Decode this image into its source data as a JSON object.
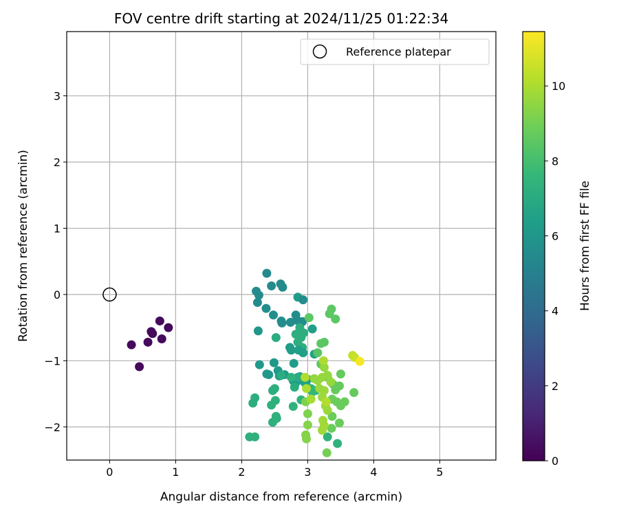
{
  "chart_data": {
    "type": "scatter",
    "title": "FOV centre drift starting at 2024/11/25 01:22:34",
    "xlabel": "Angular distance from reference (arcmin)",
    "ylabel": "Rotation from reference (arcmin)",
    "xlim": [
      -0.65,
      5.85
    ],
    "ylim": [
      -2.5,
      3.97
    ],
    "xticks": [
      "0",
      "1",
      "2",
      "3",
      "4",
      "5"
    ],
    "yticks": [
      "−2",
      "−1",
      "0",
      "1",
      "2",
      "3"
    ],
    "grid": true,
    "legend": {
      "position": "top-right",
      "entries": [
        "Reference platepar"
      ]
    },
    "reference_point": {
      "x": 0,
      "y": 0
    },
    "colorbar": {
      "label": "Hours from first FF file",
      "range": [
        0,
        11.45
      ],
      "ticks": [
        "0",
        "2",
        "4",
        "6",
        "8",
        "10"
      ],
      "colormap": "viridis",
      "colors": [
        "#440154",
        "#482878",
        "#3e4989",
        "#31688e",
        "#26828e",
        "#1f9e89",
        "#35b779",
        "#6ece58",
        "#b5de2b",
        "#fde725"
      ]
    },
    "points": [
      {
        "x": 0.33,
        "y": -0.76,
        "c": 0.3
      },
      {
        "x": 0.45,
        "y": -1.09,
        "c": 0.3
      },
      {
        "x": 0.58,
        "y": -0.72,
        "c": 0.3
      },
      {
        "x": 0.63,
        "y": -0.56,
        "c": 0.3
      },
      {
        "x": 0.65,
        "y": -0.59,
        "c": 0.3
      },
      {
        "x": 0.76,
        "y": -0.4,
        "c": 0.3
      },
      {
        "x": 0.79,
        "y": -0.67,
        "c": 0.3
      },
      {
        "x": 0.89,
        "y": -0.5,
        "c": 0.3
      },
      {
        "x": 2.38,
        "y": 0.32,
        "c": 5.4
      },
      {
        "x": 2.22,
        "y": 0.05,
        "c": 5.5
      },
      {
        "x": 2.26,
        "y": -0.01,
        "c": 5.5
      },
      {
        "x": 2.24,
        "y": -0.12,
        "c": 5.5
      },
      {
        "x": 2.45,
        "y": 0.13,
        "c": 5.5
      },
      {
        "x": 2.59,
        "y": 0.16,
        "c": 5.5
      },
      {
        "x": 2.62,
        "y": 0.11,
        "c": 5.5
      },
      {
        "x": 2.37,
        "y": -0.21,
        "c": 5.6
      },
      {
        "x": 2.48,
        "y": -0.31,
        "c": 5.6
      },
      {
        "x": 2.6,
        "y": -0.4,
        "c": 5.6
      },
      {
        "x": 2.61,
        "y": -0.43,
        "c": 5.6
      },
      {
        "x": 2.74,
        "y": -0.42,
        "c": 5.6
      },
      {
        "x": 2.82,
        "y": -0.31,
        "c": 5.6
      },
      {
        "x": 2.84,
        "y": -0.39,
        "c": 5.6
      },
      {
        "x": 2.92,
        "y": -0.41,
        "c": 5.6
      },
      {
        "x": 2.85,
        "y": -0.04,
        "c": 6.3
      },
      {
        "x": 2.93,
        "y": -0.08,
        "c": 5.6
      },
      {
        "x": 2.25,
        "y": -0.55,
        "c": 6.0
      },
      {
        "x": 2.27,
        "y": -1.06,
        "c": 6.1
      },
      {
        "x": 2.38,
        "y": -1.2,
        "c": 6.1
      },
      {
        "x": 2.41,
        "y": -1.21,
        "c": 6.1
      },
      {
        "x": 2.49,
        "y": -1.03,
        "c": 6.1
      },
      {
        "x": 2.55,
        "y": -1.15,
        "c": 6.2
      },
      {
        "x": 2.57,
        "y": -1.23,
        "c": 6.2
      },
      {
        "x": 2.65,
        "y": -1.21,
        "c": 6.2
      },
      {
        "x": 2.73,
        "y": -0.8,
        "c": 6.2
      },
      {
        "x": 2.75,
        "y": -0.84,
        "c": 6.3
      },
      {
        "x": 2.79,
        "y": -1.04,
        "c": 6.3
      },
      {
        "x": 2.78,
        "y": -1.3,
        "c": 6.3
      },
      {
        "x": 2.81,
        "y": -1.35,
        "c": 6.3
      },
      {
        "x": 2.82,
        "y": -0.6,
        "c": 7.2
      },
      {
        "x": 2.85,
        "y": -0.72,
        "c": 7.2
      },
      {
        "x": 2.88,
        "y": -0.5,
        "c": 7.2
      },
      {
        "x": 2.9,
        "y": -0.65,
        "c": 7.2
      },
      {
        "x": 2.92,
        "y": -0.8,
        "c": 7.2
      },
      {
        "x": 2.94,
        "y": -0.58,
        "c": 7.2
      },
      {
        "x": 2.86,
        "y": -0.84,
        "c": 6.4
      },
      {
        "x": 2.93,
        "y": -0.88,
        "c": 6.4
      },
      {
        "x": 3.07,
        "y": -0.52,
        "c": 6.4
      },
      {
        "x": 3.1,
        "y": -0.9,
        "c": 6.5
      },
      {
        "x": 2.88,
        "y": -1.24,
        "c": 6.5
      },
      {
        "x": 2.92,
        "y": -1.3,
        "c": 6.5
      },
      {
        "x": 2.97,
        "y": -1.35,
        "c": 6.5
      },
      {
        "x": 3.0,
        "y": -1.28,
        "c": 6.6
      },
      {
        "x": 2.52,
        "y": -0.65,
        "c": 7.0
      },
      {
        "x": 2.85,
        "y": -1.25,
        "c": 7.0
      },
      {
        "x": 2.8,
        "y": -1.4,
        "c": 7.1
      },
      {
        "x": 2.6,
        "y": -1.22,
        "c": 7.1
      },
      {
        "x": 2.47,
        "y": -1.45,
        "c": 7.2
      },
      {
        "x": 2.5,
        "y": -1.42,
        "c": 7.2
      },
      {
        "x": 2.2,
        "y": -1.56,
        "c": 7.2
      },
      {
        "x": 2.17,
        "y": -1.64,
        "c": 7.2
      },
      {
        "x": 2.45,
        "y": -1.67,
        "c": 7.3
      },
      {
        "x": 2.51,
        "y": -1.6,
        "c": 7.3
      },
      {
        "x": 2.47,
        "y": -1.93,
        "c": 7.3
      },
      {
        "x": 2.53,
        "y": -1.87,
        "c": 7.3
      },
      {
        "x": 2.52,
        "y": -1.84,
        "c": 7.3
      },
      {
        "x": 2.12,
        "y": -2.15,
        "c": 7.3
      },
      {
        "x": 2.2,
        "y": -2.15,
        "c": 7.3
      },
      {
        "x": 2.78,
        "y": -1.69,
        "c": 7.4
      },
      {
        "x": 2.9,
        "y": -1.59,
        "c": 7.4
      },
      {
        "x": 2.75,
        "y": -1.25,
        "c": 7.4
      },
      {
        "x": 3.05,
        "y": -1.42,
        "c": 7.6
      },
      {
        "x": 3.07,
        "y": -1.47,
        "c": 7.6
      },
      {
        "x": 3.12,
        "y": -1.45,
        "c": 7.6
      },
      {
        "x": 3.3,
        "y": -2.15,
        "c": 7.4
      },
      {
        "x": 3.45,
        "y": -2.25,
        "c": 7.4
      },
      {
        "x": 3.15,
        "y": -0.88,
        "c": 8.4
      },
      {
        "x": 3.2,
        "y": -0.74,
        "c": 8.5
      },
      {
        "x": 3.25,
        "y": -0.72,
        "c": 8.5
      },
      {
        "x": 3.02,
        "y": -0.35,
        "c": 8.5
      },
      {
        "x": 3.36,
        "y": -0.22,
        "c": 8.5
      },
      {
        "x": 3.33,
        "y": -0.29,
        "c": 8.5
      },
      {
        "x": 3.42,
        "y": -0.37,
        "c": 8.5
      },
      {
        "x": 3.2,
        "y": -1.05,
        "c": 8.6
      },
      {
        "x": 3.3,
        "y": -1.25,
        "c": 8.6
      },
      {
        "x": 3.38,
        "y": -1.35,
        "c": 8.6
      },
      {
        "x": 3.42,
        "y": -1.44,
        "c": 8.7
      },
      {
        "x": 3.48,
        "y": -1.38,
        "c": 8.7
      },
      {
        "x": 3.5,
        "y": -1.2,
        "c": 8.7
      },
      {
        "x": 3.7,
        "y": -1.48,
        "c": 8.7
      },
      {
        "x": 3.37,
        "y": -1.58,
        "c": 8.8
      },
      {
        "x": 3.44,
        "y": -1.62,
        "c": 8.8
      },
      {
        "x": 3.5,
        "y": -1.68,
        "c": 8.8
      },
      {
        "x": 3.56,
        "y": -1.62,
        "c": 8.8
      },
      {
        "x": 3.37,
        "y": -1.84,
        "c": 8.8
      },
      {
        "x": 3.48,
        "y": -1.94,
        "c": 8.8
      },
      {
        "x": 3.36,
        "y": -2.02,
        "c": 8.8
      },
      {
        "x": 3.29,
        "y": -2.39,
        "c": 9.0
      },
      {
        "x": 2.97,
        "y": -1.62,
        "c": 9.2
      },
      {
        "x": 3.0,
        "y": -1.8,
        "c": 9.2
      },
      {
        "x": 3.0,
        "y": -1.97,
        "c": 9.3
      },
      {
        "x": 2.97,
        "y": -2.12,
        "c": 9.3
      },
      {
        "x": 2.98,
        "y": -2.18,
        "c": 9.3
      },
      {
        "x": 3.1,
        "y": -1.27,
        "c": 9.6
      },
      {
        "x": 3.15,
        "y": -1.3,
        "c": 9.6
      },
      {
        "x": 3.22,
        "y": -1.25,
        "c": 9.6
      },
      {
        "x": 3.25,
        "y": -1.1,
        "c": 9.6
      },
      {
        "x": 3.3,
        "y": -1.22,
        "c": 9.6
      },
      {
        "x": 3.35,
        "y": -1.32,
        "c": 9.6
      },
      {
        "x": 3.18,
        "y": -1.42,
        "c": 9.7
      },
      {
        "x": 3.25,
        "y": -1.45,
        "c": 9.7
      },
      {
        "x": 3.22,
        "y": -1.55,
        "c": 9.7
      },
      {
        "x": 3.27,
        "y": -1.68,
        "c": 9.7
      },
      {
        "x": 3.3,
        "y": -1.75,
        "c": 9.7
      },
      {
        "x": 3.23,
        "y": -1.9,
        "c": 9.8
      },
      {
        "x": 3.25,
        "y": -1.98,
        "c": 9.8
      },
      {
        "x": 3.22,
        "y": -2.05,
        "c": 9.8
      },
      {
        "x": 3.05,
        "y": -1.58,
        "c": 9.9
      },
      {
        "x": 2.98,
        "y": -1.42,
        "c": 10.0
      },
      {
        "x": 2.96,
        "y": -1.25,
        "c": 10.1
      },
      {
        "x": 3.28,
        "y": -1.62,
        "c": 10.1
      },
      {
        "x": 3.24,
        "y": -1.0,
        "c": 10.0
      },
      {
        "x": 3.68,
        "y": -0.92,
        "c": 10.4
      },
      {
        "x": 3.71,
        "y": -0.95,
        "c": 10.5
      },
      {
        "x": 3.79,
        "y": -1.01,
        "c": 11.3
      }
    ]
  }
}
